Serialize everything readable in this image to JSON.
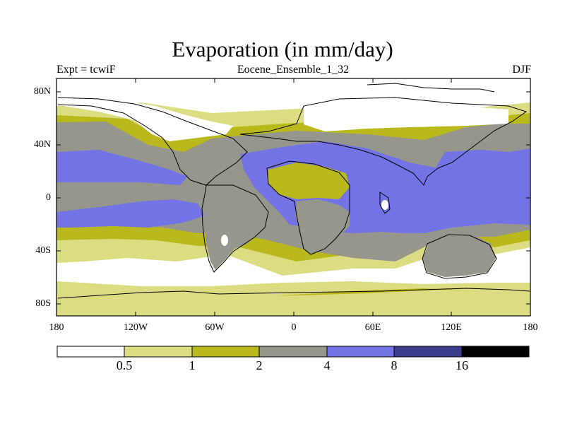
{
  "title": "Evaporation (in mm/day)",
  "experiment": "Expt = tcwiF",
  "run_name": "Eocene_Ensemble_1_32",
  "season": "DJF",
  "y_axis_labels": [
    "80N",
    "40N",
    "0",
    "40S",
    "80S"
  ],
  "x_axis_labels": [
    "180",
    "120W",
    "60W",
    "0",
    "60E",
    "120E",
    "180"
  ],
  "colorbar": {
    "labels": [
      "0.5",
      "1",
      "2",
      "4",
      "8",
      "16"
    ],
    "colors": [
      "#ffffff",
      "#dcdc82",
      "#b9b91e",
      "#96968c",
      "#7373e6",
      "#3c3c8c",
      "#000000"
    ]
  },
  "colors": {
    "below_0_5": "#ffffff",
    "range_0_5_1": "#dcdc82",
    "range_1_2": "#b9b91e",
    "range_2_4": "#96968c",
    "range_4_8": "#7373e6",
    "coastline": "#000000"
  }
}
